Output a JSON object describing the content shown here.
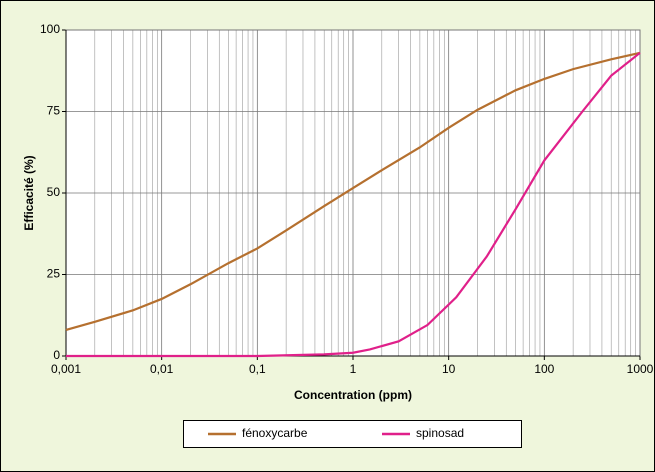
{
  "chart_data": {
    "type": "line",
    "x_label": "Concentration (ppm)",
    "y_label": "Efficacité (%)",
    "xscale": "log",
    "grid": true,
    "minor_grid": true,
    "legend": "bottom",
    "xlim": [
      0.001,
      1000
    ],
    "ylim": [
      0,
      100
    ],
    "xticks": [
      {
        "value": 0.001,
        "label": "0,001"
      },
      {
        "value": 0.01,
        "label": "0,01"
      },
      {
        "value": 0.1,
        "label": "0,1"
      },
      1,
      10,
      100,
      1000
    ],
    "yticks": [
      0,
      25,
      50,
      75,
      100
    ],
    "series": [
      {
        "name": "fénoxycarbe",
        "color": "#b5702f",
        "x": [
          0.001,
          0.002,
          0.005,
          0.01,
          0.02,
          0.05,
          0.1,
          0.2,
          0.5,
          1,
          2,
          5,
          10,
          20,
          50,
          100,
          200,
          500,
          1000
        ],
        "values": [
          8,
          10.5,
          14,
          17.5,
          22,
          28.5,
          33,
          38.5,
          46,
          51.5,
          57,
          64,
          70,
          75.5,
          81.5,
          85,
          88,
          91,
          93
        ]
      },
      {
        "name": "spinosad",
        "color": "#e0208a",
        "x": [
          0.001,
          0.01,
          0.1,
          0.5,
          1,
          1.5,
          3,
          6,
          12,
          25,
          50,
          100,
          250,
          500,
          1000
        ],
        "values": [
          0,
          0,
          0,
          0.5,
          1,
          2,
          4.5,
          9.5,
          18,
          30.5,
          45,
          60,
          75,
          86,
          93
        ]
      }
    ]
  }
}
